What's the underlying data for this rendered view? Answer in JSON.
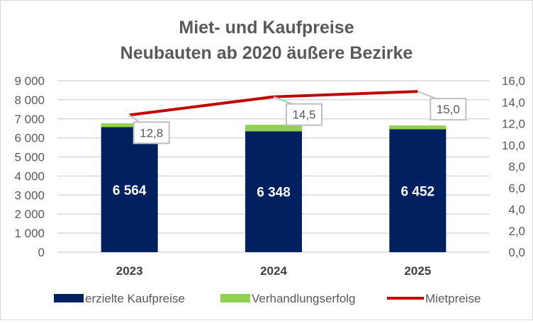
{
  "chart_data": {
    "type": "bar",
    "title": [
      "Miet- und Kaufpreise",
      "Neubauten ab 2020 äußere Bezirke"
    ],
    "categories": [
      "2023",
      "2024",
      "2025"
    ],
    "series": [
      {
        "name": "erzielte Kaufpreise",
        "type": "bar",
        "stack": true,
        "axis": "left",
        "color": "#002060",
        "values": [
          6564,
          6348,
          6452
        ],
        "labels": [
          "6 564",
          "6 348",
          "6 452"
        ]
      },
      {
        "name": "Verhandlungserfolg",
        "type": "bar",
        "stack": true,
        "axis": "left",
        "color": "#92D050",
        "values": [
          200,
          340,
          200
        ]
      },
      {
        "name": "Mietpreise",
        "type": "line",
        "axis": "right",
        "color": "#C00000",
        "values": [
          12.8,
          14.5,
          15.0
        ],
        "labels": [
          "12,8",
          "14,5",
          "15,0"
        ]
      }
    ],
    "left_axis": {
      "ylim": [
        0,
        9000
      ],
      "ticks": [
        "0",
        "1 000",
        "2 000",
        "3 000",
        "4 000",
        "5 000",
        "6 000",
        "7 000",
        "8 000",
        "9 000"
      ]
    },
    "right_axis": {
      "ylim": [
        0,
        16
      ],
      "ticks": [
        "0,0",
        "2,0",
        "4,0",
        "6,0",
        "8,0",
        "10,0",
        "12,0",
        "14,0",
        "16,0"
      ]
    },
    "grid": true,
    "legend": "bottom"
  }
}
